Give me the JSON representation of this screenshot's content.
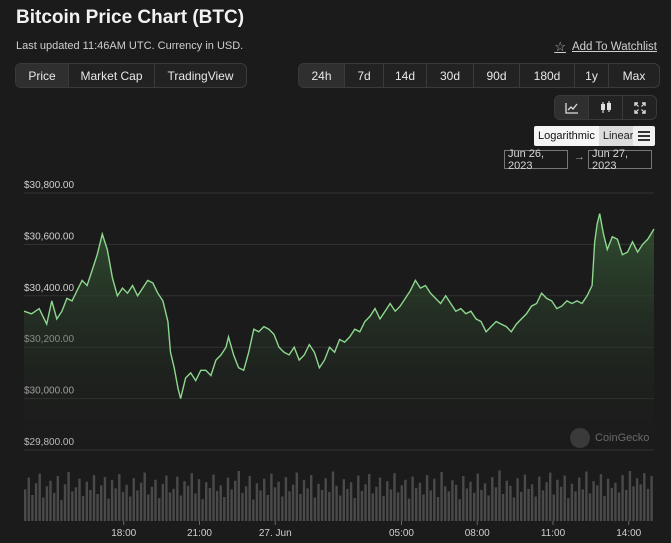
{
  "header": {
    "title": "Bitcoin Price Chart (BTC)",
    "subtitle": "Last updated 11:46AM UTC. Currency in USD.",
    "watchlist": "Add To Watchlist"
  },
  "tabs": [
    {
      "label": "Price",
      "active": true
    },
    {
      "label": "Market Cap",
      "active": false
    },
    {
      "label": "TradingView",
      "active": false
    }
  ],
  "ranges": [
    {
      "label": "24h",
      "active": true
    },
    {
      "label": "7d",
      "active": false
    },
    {
      "label": "14d",
      "active": false
    },
    {
      "label": "30d",
      "active": false
    },
    {
      "label": "90d",
      "active": false
    },
    {
      "label": "180d",
      "active": false
    },
    {
      "label": "1y",
      "active": false
    },
    {
      "label": "Max",
      "active": false
    }
  ],
  "chart_tools": {
    "icons": [
      "line-chart-icon",
      "candlestick-icon",
      "fullscreen-icon"
    ],
    "log_label": "Logarithmic",
    "linear_label": "Linear",
    "menu_icon": "hamburger-menu-icon",
    "date_from": "Jun 26, 2023",
    "date_to": "Jun 27, 2023",
    "arrow": "→"
  },
  "watermark": "CoinGecko",
  "colors": {
    "line": "#8dd78f",
    "area_top": "#365a36",
    "volume": "#4a4a4a",
    "grid": "#333333"
  },
  "chart_data": {
    "type": "area",
    "title": "",
    "xlabel": "",
    "ylabel": "",
    "ylim": [
      29800,
      30800
    ],
    "yticks": [
      30800,
      30600,
      30400,
      30200,
      30000,
      29800
    ],
    "ytick_labels": [
      "$30,800.00",
      "$30,600.00",
      "$30,400.00",
      "$30,200.00",
      "$30,000.00",
      "$29,800.00"
    ],
    "xticks": [
      {
        "label": "18:00",
        "t": 17.95
      },
      {
        "label": "21:00",
        "t": 20.95
      },
      {
        "label": "27. Jun",
        "t": 23.95
      },
      {
        "label": "05:00",
        "t": 28.95
      },
      {
        "label": "08:00",
        "t": 31.95
      },
      {
        "label": "11:00",
        "t": 34.95
      },
      {
        "label": "14:00",
        "t": 37.95
      }
    ],
    "xlim": [
      14.0,
      38.95
    ],
    "x_unit": "hours from Jun 26 00:00 UTC",
    "series": [
      {
        "points": [
          [
            14.0,
            30340
          ],
          [
            14.3,
            30330
          ],
          [
            14.6,
            30350
          ],
          [
            14.9,
            30290
          ],
          [
            15.1,
            30380
          ],
          [
            15.3,
            30310
          ],
          [
            15.5,
            30340
          ],
          [
            15.7,
            30390
          ],
          [
            15.9,
            30380
          ],
          [
            16.1,
            30420
          ],
          [
            16.3,
            30460
          ],
          [
            16.5,
            30440
          ],
          [
            16.7,
            30500
          ],
          [
            16.9,
            30560
          ],
          [
            17.1,
            30640
          ],
          [
            17.3,
            30580
          ],
          [
            17.5,
            30470
          ],
          [
            17.7,
            30400
          ],
          [
            17.9,
            30430
          ],
          [
            18.1,
            30410
          ],
          [
            18.3,
            30440
          ],
          [
            18.5,
            30400
          ],
          [
            18.7,
            30430
          ],
          [
            18.9,
            30460
          ],
          [
            19.1,
            30450
          ],
          [
            19.3,
            30410
          ],
          [
            19.5,
            30380
          ],
          [
            19.7,
            30300
          ],
          [
            19.8,
            30180
          ],
          [
            19.95,
            30120
          ],
          [
            20.1,
            30040
          ],
          [
            20.2,
            30000
          ],
          [
            20.4,
            30080
          ],
          [
            20.6,
            30100
          ],
          [
            20.8,
            30070
          ],
          [
            21.0,
            30110
          ],
          [
            21.2,
            30110
          ],
          [
            21.4,
            30090
          ],
          [
            21.6,
            30150
          ],
          [
            21.8,
            30170
          ],
          [
            22.0,
            30200
          ],
          [
            22.1,
            30240
          ],
          [
            22.3,
            30170
          ],
          [
            22.5,
            30120
          ],
          [
            22.7,
            30110
          ],
          [
            22.9,
            30180
          ],
          [
            23.1,
            30270
          ],
          [
            23.3,
            30260
          ],
          [
            23.5,
            30280
          ],
          [
            23.7,
            30270
          ],
          [
            23.9,
            30250
          ],
          [
            24.1,
            30200
          ],
          [
            24.3,
            30180
          ],
          [
            24.5,
            30170
          ],
          [
            24.7,
            30200
          ],
          [
            24.9,
            30150
          ],
          [
            25.1,
            30170
          ],
          [
            25.3,
            30210
          ],
          [
            25.5,
            30180
          ],
          [
            25.7,
            30120
          ],
          [
            25.9,
            30150
          ],
          [
            26.1,
            30200
          ],
          [
            26.3,
            30180
          ],
          [
            26.5,
            30230
          ],
          [
            26.7,
            30220
          ],
          [
            26.9,
            30240
          ],
          [
            27.1,
            30270
          ],
          [
            27.3,
            30260
          ],
          [
            27.5,
            30300
          ],
          [
            27.7,
            30320
          ],
          [
            27.9,
            30350
          ],
          [
            28.1,
            30310
          ],
          [
            28.3,
            30340
          ],
          [
            28.5,
            30370
          ],
          [
            28.7,
            30340
          ],
          [
            28.9,
            30360
          ],
          [
            29.1,
            30390
          ],
          [
            29.3,
            30420
          ],
          [
            29.5,
            30460
          ],
          [
            29.7,
            30430
          ],
          [
            29.9,
            30440
          ],
          [
            30.1,
            30410
          ],
          [
            30.3,
            30390
          ],
          [
            30.5,
            30370
          ],
          [
            30.7,
            30400
          ],
          [
            30.9,
            30370
          ],
          [
            31.1,
            30340
          ],
          [
            31.3,
            30350
          ],
          [
            31.5,
            30330
          ],
          [
            31.7,
            30340
          ],
          [
            31.9,
            30310
          ],
          [
            32.1,
            30300
          ],
          [
            32.3,
            30260
          ],
          [
            32.5,
            30280
          ],
          [
            32.7,
            30300
          ],
          [
            32.9,
            30290
          ],
          [
            33.1,
            30280
          ],
          [
            33.3,
            30260
          ],
          [
            33.5,
            30290
          ],
          [
            33.7,
            30310
          ],
          [
            33.9,
            30330
          ],
          [
            34.1,
            30360
          ],
          [
            34.3,
            30370
          ],
          [
            34.5,
            30410
          ],
          [
            34.7,
            30390
          ],
          [
            34.9,
            30380
          ],
          [
            35.1,
            30350
          ],
          [
            35.3,
            30360
          ],
          [
            35.5,
            30380
          ],
          [
            35.7,
            30370
          ],
          [
            35.9,
            30380
          ],
          [
            36.1,
            30370
          ],
          [
            36.3,
            30400
          ],
          [
            36.5,
            30440
          ],
          [
            36.6,
            30610
          ],
          [
            36.7,
            30680
          ],
          [
            36.8,
            30720
          ],
          [
            36.95,
            30640
          ],
          [
            37.1,
            30580
          ],
          [
            37.3,
            30630
          ],
          [
            37.5,
            30620
          ],
          [
            37.7,
            30560
          ],
          [
            37.9,
            30570
          ],
          [
            38.1,
            30610
          ],
          [
            38.3,
            30570
          ],
          [
            38.5,
            30600
          ],
          [
            38.7,
            30620
          ],
          [
            38.95,
            30660
          ]
        ]
      }
    ],
    "volume_relative": [
      0.62,
      0.85,
      0.51,
      0.74,
      0.93,
      0.46,
      0.68,
      0.79,
      0.55,
      0.88,
      0.41,
      0.72,
      0.96,
      0.58,
      0.66,
      0.83,
      0.49,
      0.77,
      0.61,
      0.9,
      0.53,
      0.7,
      0.86,
      0.44,
      0.8,
      0.64,
      0.92,
      0.57,
      0.71,
      0.48,
      0.84,
      0.6,
      0.75,
      0.95,
      0.52,
      0.67,
      0.81,
      0.45,
      0.73,
      0.89,
      0.56,
      0.63,
      0.87,
      0.5,
      0.78,
      0.69,
      0.94,
      0.54,
      0.82,
      0.43,
      0.76,
      0.65,
      0.91,
      0.59,
      0.7,
      0.47,
      0.85,
      0.62,
      0.79,
      0.98,
      0.55,
      0.68,
      0.88,
      0.42,
      0.74,
      0.6,
      0.83,
      0.51,
      0.93,
      0.66,
      0.77,
      0.48,
      0.86,
      0.58,
      0.71,
      0.95,
      0.53,
      0.8,
      0.64,
      0.9,
      0.46,
      0.73,
      0.61,
      0.84,
      0.57,
      0.97,
      0.69,
      0.5,
      0.82,
      0.63,
      0.76,
      0.45,
      0.89,
      0.59,
      0.72,
      0.92,
      0.54,
      0.67,
      0.85,
      0.49,
      0.78,
      0.62,
      0.94,
      0.56,
      0.7,
      0.81,
      0.44,
      0.87,
      0.65,
      0.75,
      0.52,
      0.9,
      0.6,
      0.83,
      0.47,
      0.96,
      0.68,
      0.58,
      0.8,
      0.71,
      0.43,
      0.88,
      0.64,
      0.77,
      0.55,
      0.93,
      0.61,
      0.74,
      0.5,
      0.86,
      0.66,
      0.99,
      0.53,
      0.79,
      0.69,
      0.46,
      0.84,
      0.57,
      0.91,
      0.63,
      0.72,
      0.48,
      0.87,
      0.6,
      0.76,
      0.95,
      0.52,
      0.81,
      0.67,
      0.89,
      0.45,
      0.73,
      0.58,
      0.85,
      0.62,
      0.97,
      0.54,
      0.78,
      0.7,
      0.92,
      0.49,
      0.83,
      0.65,
      0.75,
      0.56,
      0.9,
      0.61,
      0.98,
      0.68,
      0.84,
      0.72,
      0.94,
      0.63,
      0.88
    ]
  }
}
